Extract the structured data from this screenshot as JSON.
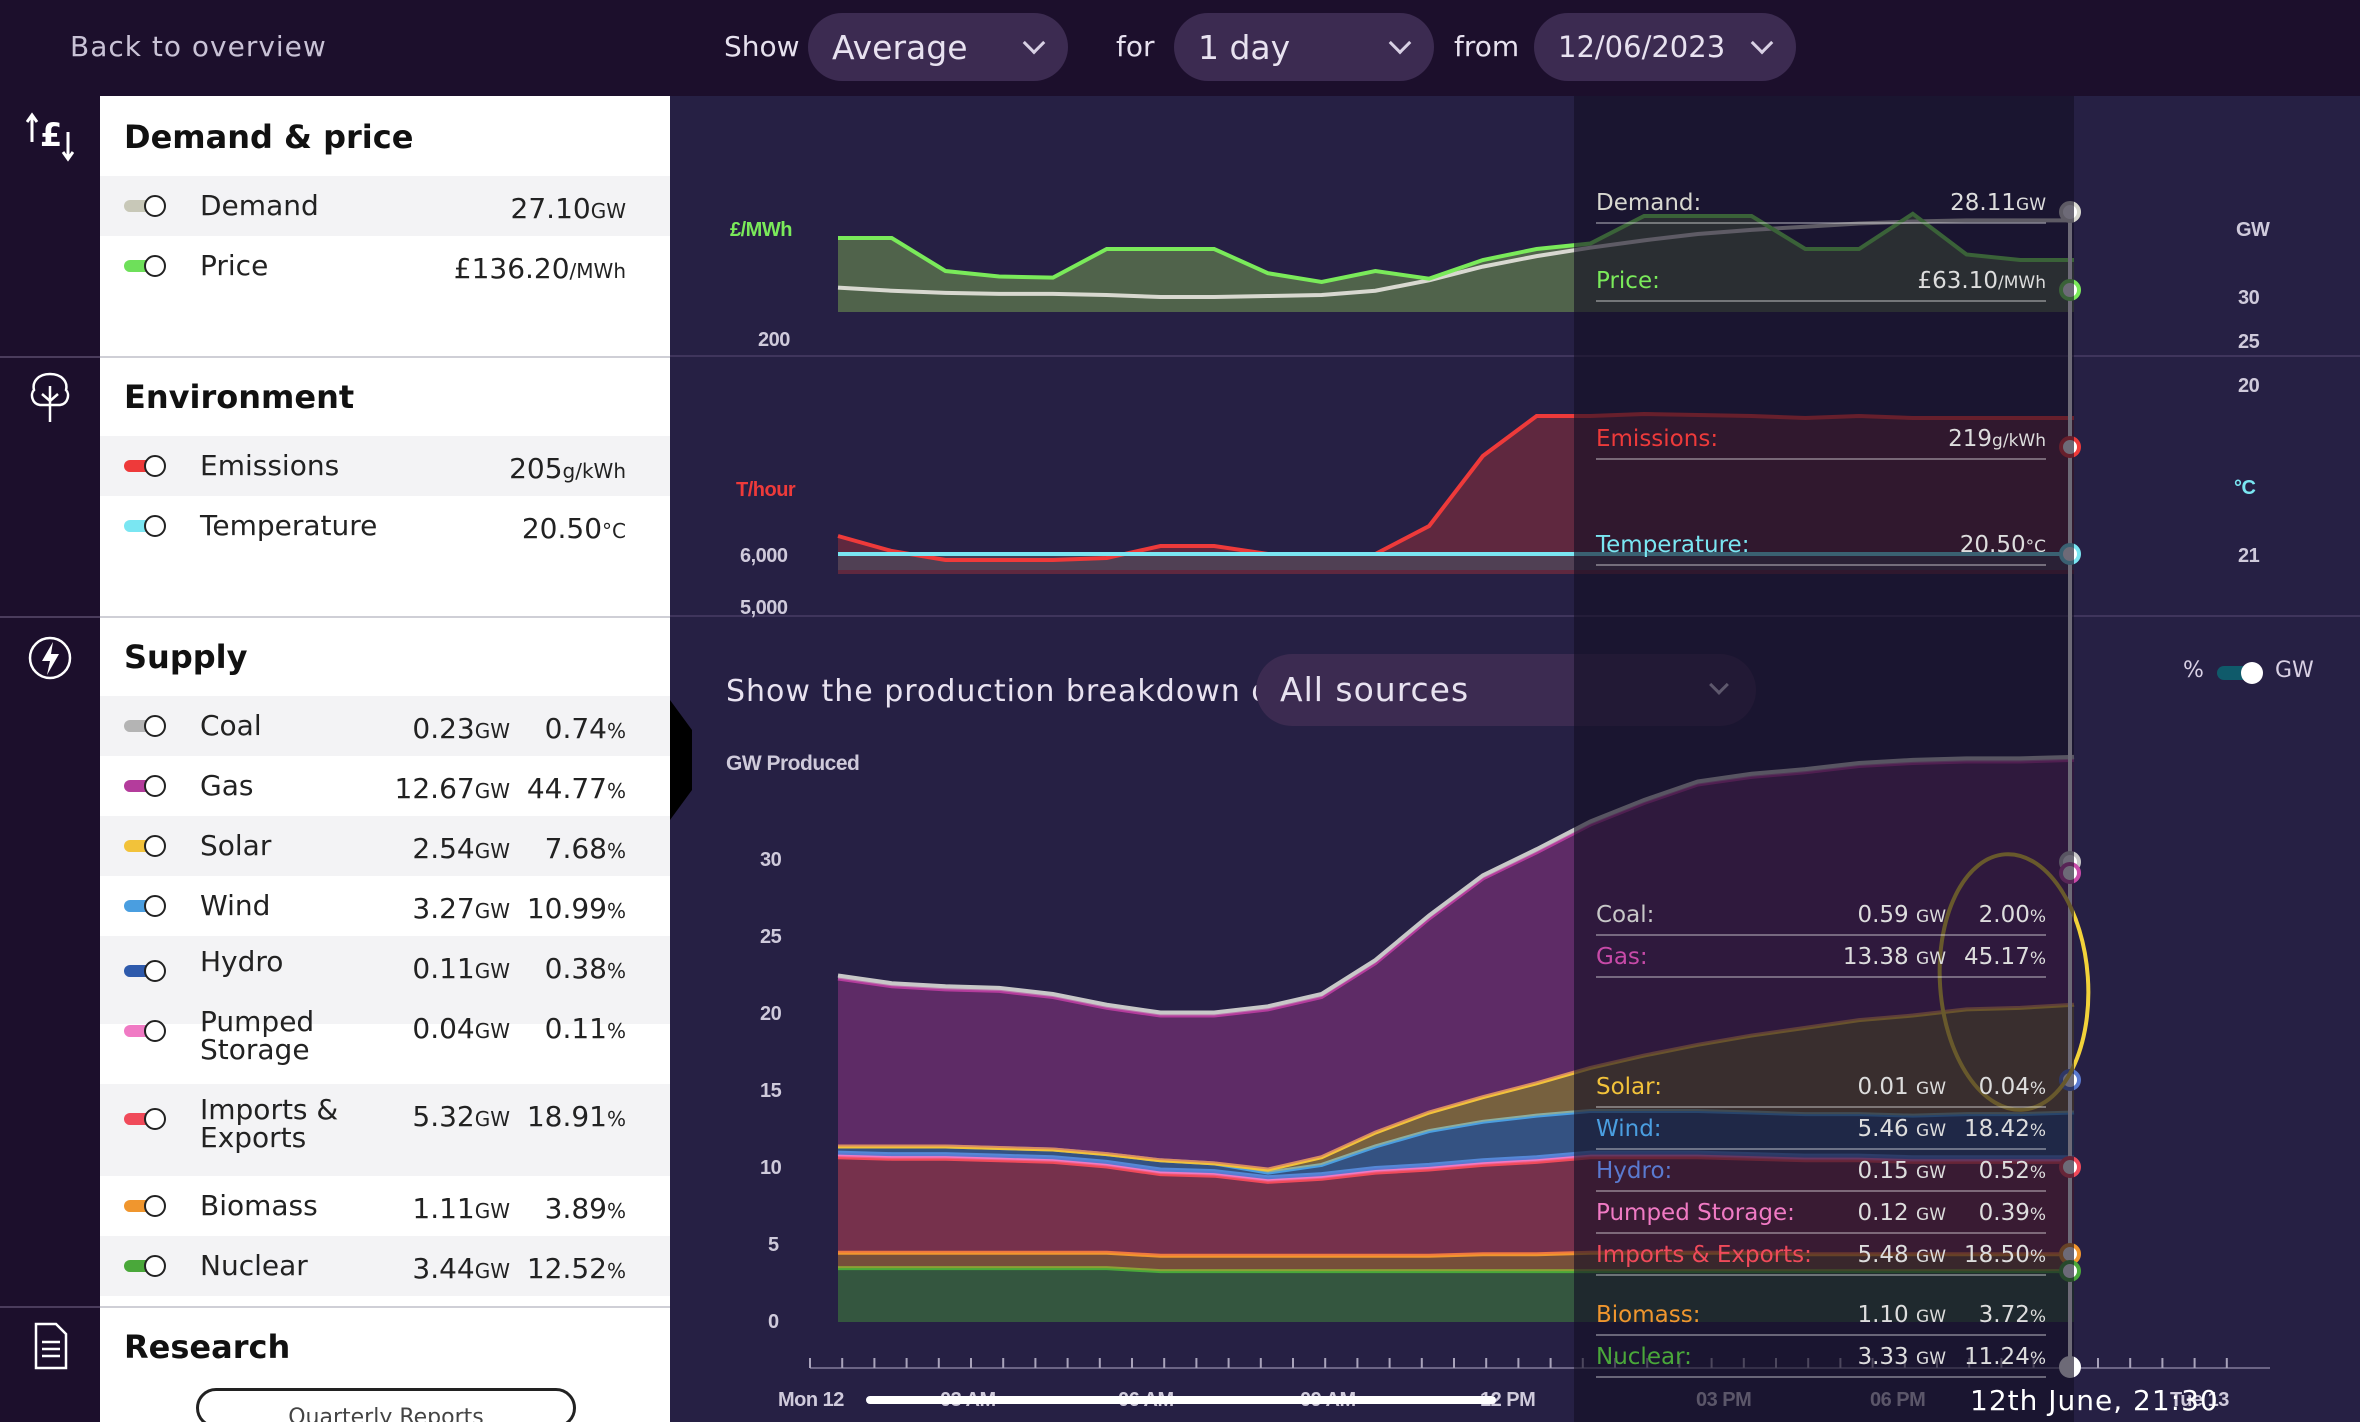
{
  "topbar": {
    "back_label": "Back to overview",
    "show_label": "Show",
    "show_value": "Average",
    "for_label": "for",
    "for_value": "1 day",
    "from_label": "from",
    "from_value": "12/06/2023"
  },
  "panel": {
    "demand_price": {
      "title": "Demand & price",
      "items": [
        {
          "label": "Demand",
          "value": "27.10",
          "unit": "GW",
          "color": "#c8c8b8"
        },
        {
          "label": "Price",
          "value": "£136.20",
          "unit": "/MWh",
          "color": "#6ee05a"
        }
      ]
    },
    "environment": {
      "title": "Environment",
      "items": [
        {
          "label": "Emissions",
          "value": "205",
          "unit": "g/kWh",
          "color": "#ee3a3a"
        },
        {
          "label": "Temperature",
          "value": "20.50",
          "unit": "°C",
          "color": "#7ae6f2"
        }
      ]
    },
    "supply": {
      "title": "Supply",
      "items": [
        {
          "label": "Coal",
          "gw": "0.23",
          "pct": "0.74",
          "color": "#b4b4b4"
        },
        {
          "label": "Gas",
          "gw": "12.67",
          "pct": "44.77",
          "color": "#b43c9c"
        },
        {
          "label": "Solar",
          "gw": "2.54",
          "pct": "7.68",
          "color": "#f2c23a"
        },
        {
          "label": "Wind",
          "gw": "3.27",
          "pct": "10.99",
          "color": "#4a9ee0"
        },
        {
          "label": "Hydro",
          "gw": "0.11",
          "pct": "0.38",
          "color": "#2e5aac"
        },
        {
          "label": "Pumped Storage",
          "gw": "0.04",
          "pct": "0.11",
          "color": "#f07ac4"
        },
        {
          "label": "Imports & Exports",
          "gw": "5.32",
          "pct": "18.91",
          "color": "#f04a5a"
        },
        {
          "label": "Biomass",
          "gw": "1.11",
          "pct": "3.89",
          "color": "#f0962e"
        },
        {
          "label": "Nuclear",
          "gw": "3.44",
          "pct": "12.52",
          "color": "#4aa83a"
        }
      ],
      "gw_unit": "GW",
      "pct_unit": "%"
    },
    "research": {
      "title": "Research",
      "button": "Quarterly Reports"
    }
  },
  "charts": {
    "price_unit": "£/MWh",
    "gw_unit": "GW",
    "emissions_unit": "T/hour",
    "temp_unit": "°C",
    "supply_axis_title": "GW Produced",
    "breakdown_label": "Show the production breakdown of",
    "breakdown_value": "All sources",
    "toggle_pct": "%",
    "toggle_gw": "GW",
    "time_label": "12th June, 21:30"
  },
  "hover": {
    "demand": {
      "label": "Demand:",
      "value": "28.11",
      "unit": "GW"
    },
    "price": {
      "label": "Price:",
      "value": "£63.10",
      "unit": "/MWh"
    },
    "emissions": {
      "label": "Emissions:",
      "value": "219",
      "unit": "g/kWh"
    },
    "temperature": {
      "label": "Temperature:",
      "value": "20.50",
      "unit": "°C"
    },
    "supply": [
      {
        "label": "Coal:",
        "gw": "0.59",
        "pct": "2.00",
        "color": "#c8c8c8"
      },
      {
        "label": "Gas:",
        "gw": "13.38",
        "pct": "45.17",
        "color": "#c84aa8"
      },
      {
        "label": "Solar:",
        "gw": "0.01",
        "pct": "0.04",
        "color": "#f2c23a"
      },
      {
        "label": "Wind:",
        "gw": "5.46",
        "pct": "18.42",
        "color": "#4a9ee0"
      },
      {
        "label": "Hydro:",
        "gw": "0.15",
        "pct": "0.52",
        "color": "#5a7ad0"
      },
      {
        "label": "Pumped Storage:",
        "gw": "0.12",
        "pct": "0.39",
        "color": "#f07ac4"
      },
      {
        "label": "Imports & Exports:",
        "gw": "5.48",
        "pct": "18.50",
        "color": "#f04a5a"
      },
      {
        "label": "Biomass:",
        "gw": "1.10",
        "pct": "3.72",
        "color": "#f0962e"
      },
      {
        "label": "Nuclear:",
        "gw": "3.33",
        "pct": "11.24",
        "color": "#4aa83a"
      }
    ]
  },
  "chart_data": [
    {
      "type": "line",
      "ylabel_left": "£/MWh",
      "ylabel_right": "GW",
      "y_ticks_left": [
        "200"
      ],
      "y_ticks_right": [
        "30",
        "25",
        "20"
      ],
      "series": [
        {
          "name": "Demand",
          "color": "#d8d8d0",
          "values": [
            20.8,
            20.5,
            20.3,
            20.2,
            20.2,
            20.1,
            19.9,
            19.9,
            20.0,
            20.1,
            20.5,
            21.5,
            22.8,
            23.8,
            24.6,
            25.3,
            25.9,
            26.3,
            26.6,
            26.9,
            27.1,
            27.2,
            27.2,
            27.2
          ]
        },
        {
          "name": "Price",
          "color": "#7aea5a",
          "values": [
            220,
            220,
            190,
            185,
            184,
            210,
            210,
            210,
            188,
            180,
            190,
            183,
            200,
            210,
            215,
            240,
            240,
            240,
            210,
            210,
            242,
            205,
            200,
            200
          ]
        }
      ]
    },
    {
      "type": "line",
      "ylabel_left": "T/hour",
      "ylabel_right": "°C",
      "y_ticks_left": [
        "6,000",
        "5,000"
      ],
      "y_ticks_right": [
        "21"
      ],
      "series": [
        {
          "name": "Emissions",
          "color": "#ee3a3a",
          "values": [
            4800,
            4650,
            4560,
            4560,
            4560,
            4580,
            4700,
            4700,
            4620,
            4620,
            4620,
            4900,
            5600,
            6000,
            6000,
            6020,
            6010,
            6000,
            5980,
            6000,
            5980,
            5980,
            5980,
            5980
          ]
        },
        {
          "name": "Temperature",
          "color": "#7ae6f2",
          "values": [
            21,
            21,
            21,
            21,
            21,
            21,
            21,
            21,
            21,
            21,
            21,
            21,
            21,
            21,
            21,
            21,
            21,
            21,
            21,
            21,
            21,
            21,
            21,
            21
          ]
        }
      ]
    },
    {
      "type": "area",
      "ylabel": "GW Produced",
      "ylim": [
        0,
        33
      ],
      "y_ticks": [
        "30",
        "25",
        "20",
        "15",
        "10",
        "5",
        "0"
      ],
      "x_ticks": [
        "Mon 12",
        "03 AM",
        "06 AM",
        "09 AM",
        "12 PM",
        "03 PM",
        "06 PM",
        "Tue 13"
      ],
      "series": [
        {
          "name": "Nuclear",
          "color": "#4aa83a",
          "values": [
            3.5,
            3.5,
            3.5,
            3.5,
            3.5,
            3.5,
            3.3,
            3.3,
            3.3,
            3.3,
            3.3,
            3.3,
            3.3,
            3.3,
            3.3,
            3.3,
            3.3,
            3.3,
            3.3,
            3.3,
            3.3,
            3.3,
            3.3,
            3.3
          ]
        },
        {
          "name": "Biomass",
          "color": "#f0962e",
          "values": [
            1.0,
            1.0,
            1.0,
            1.0,
            1.0,
            1.0,
            1.0,
            1.0,
            1.0,
            1.0,
            1.0,
            1.0,
            1.1,
            1.1,
            1.2,
            1.2,
            1.2,
            1.2,
            1.1,
            1.1,
            1.1,
            1.1,
            1.1,
            1.1
          ]
        },
        {
          "name": "Imports & Exports",
          "color": "#f04a5a",
          "values": [
            6.2,
            6.1,
            6.1,
            6.0,
            5.9,
            5.6,
            5.3,
            5.2,
            4.8,
            5.0,
            5.4,
            5.6,
            5.8,
            6.0,
            6.2,
            6.2,
            6.2,
            6.1,
            6.1,
            6.1,
            6.0,
            6.0,
            6.0,
            6.0
          ]
        },
        {
          "name": "Pumped Storage",
          "color": "#f07ac4",
          "values": [
            0.2,
            0.2,
            0.2,
            0.2,
            0.2,
            0.2,
            0.2,
            0.2,
            0.2,
            0.2,
            0.2,
            0.2,
            0.2,
            0.2,
            0.2,
            0.2,
            0.2,
            0.2,
            0.2,
            0.2,
            0.2,
            0.2,
            0.2,
            0.2
          ]
        },
        {
          "name": "Hydro",
          "color": "#5a7ad0",
          "values": [
            0.1,
            0.1,
            0.1,
            0.1,
            0.1,
            0.1,
            0.1,
            0.1,
            0.1,
            0.1,
            0.1,
            0.1,
            0.1,
            0.1,
            0.1,
            0.1,
            0.1,
            0.1,
            0.1,
            0.1,
            0.1,
            0.1,
            0.1,
            0.1
          ]
        },
        {
          "name": "Wind",
          "color": "#4a9ee0",
          "values": [
            0.4,
            0.5,
            0.5,
            0.5,
            0.5,
            0.5,
            0.6,
            0.5,
            0.3,
            0.6,
            1.4,
            2.2,
            2.5,
            2.7,
            2.7,
            2.7,
            2.7,
            2.7,
            2.7,
            2.7,
            2.7,
            2.8,
            2.8,
            2.9
          ]
        },
        {
          "name": "Solar",
          "color": "#f2c23a",
          "values": [
            0,
            0,
            0,
            0,
            0,
            0,
            0,
            0,
            0.2,
            0.5,
            0.9,
            1.2,
            1.6,
            2.1,
            2.8,
            3.6,
            4.3,
            5.0,
            5.6,
            6.1,
            6.5,
            6.8,
            6.9,
            7.0
          ]
        },
        {
          "name": "Gas",
          "color": "#b43c9c",
          "values": [
            10.9,
            10.4,
            10.2,
            10.2,
            9.9,
            9.5,
            9.4,
            9.6,
            10.4,
            10.4,
            11.0,
            12.6,
            14.2,
            15.0,
            15.8,
            16.4,
            16.9,
            16.8,
            16.6,
            16.5,
            16.4,
            16.1,
            16.0,
            15.9
          ]
        },
        {
          "name": "Coal",
          "color": "#c8c8c8",
          "values": [
            0.2,
            0.2,
            0.2,
            0.2,
            0.2,
            0.2,
            0.2,
            0.2,
            0.2,
            0.2,
            0.2,
            0.2,
            0.2,
            0.2,
            0.2,
            0.2,
            0.2,
            0.2,
            0.2,
            0.2,
            0.2,
            0.2,
            0.2,
            0.2
          ]
        }
      ]
    }
  ]
}
